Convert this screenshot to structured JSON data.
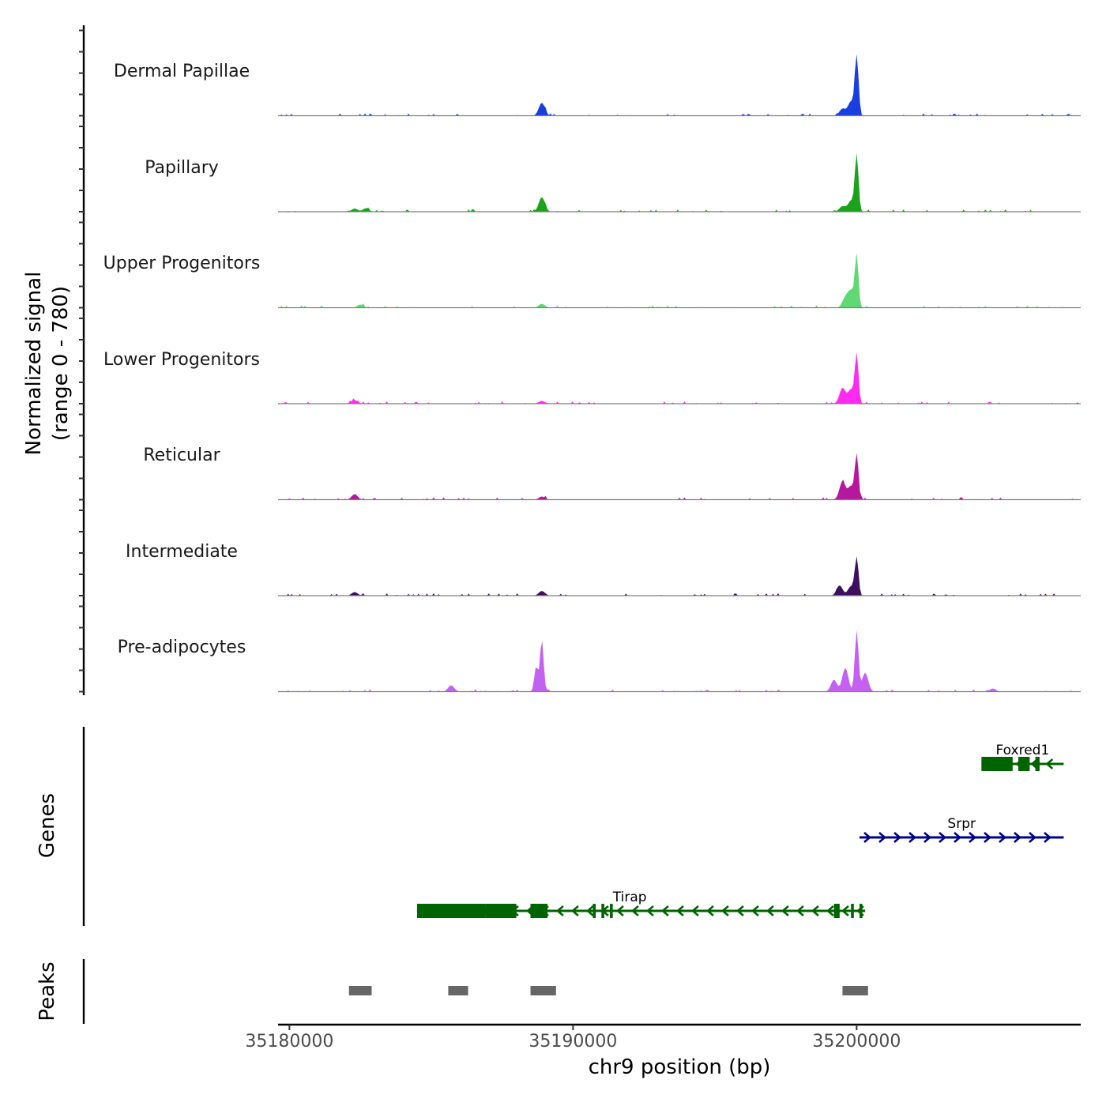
{
  "chart_data": {
    "type": "area",
    "title": "",
    "chromosome": "chr9",
    "xlabel": "chr9 position (bp)",
    "xlim": [
      35179600,
      35207900
    ],
    "x_ticks": [
      35180000,
      35190000,
      35200000
    ],
    "x_tick_labels": [
      "35180000",
      "35190000",
      "35200000"
    ],
    "signal_ylabel_line1": "Normalized signal",
    "signal_ylabel_line2": "(range 0 - 780)",
    "ylim": [
      0,
      780
    ],
    "tracks": [
      {
        "name": "Dermal Papillae",
        "color": "#1a3fe0",
        "peaks": [
          {
            "x": 35188900,
            "y": 165
          },
          {
            "x": 35200000,
            "y": 780
          },
          {
            "x": 35199800,
            "y": 180
          },
          {
            "x": 35199500,
            "y": 90
          }
        ]
      },
      {
        "name": "Papillary",
        "color": "#1aa31a",
        "peaks": [
          {
            "x": 35182300,
            "y": 40
          },
          {
            "x": 35182700,
            "y": 45
          },
          {
            "x": 35188900,
            "y": 185
          },
          {
            "x": 35200000,
            "y": 720
          },
          {
            "x": 35199800,
            "y": 140
          },
          {
            "x": 35199500,
            "y": 70
          }
        ]
      },
      {
        "name": "Upper Progenitors",
        "color": "#5ed974",
        "peaks": [
          {
            "x": 35182500,
            "y": 40
          },
          {
            "x": 35188900,
            "y": 50
          },
          {
            "x": 35200000,
            "y": 660
          },
          {
            "x": 35199800,
            "y": 200
          },
          {
            "x": 35199600,
            "y": 120
          }
        ]
      },
      {
        "name": "Lower Progenitors",
        "color": "#ff2bf0",
        "peaks": [
          {
            "x": 35182300,
            "y": 45
          },
          {
            "x": 35188900,
            "y": 35
          },
          {
            "x": 35200000,
            "y": 620
          },
          {
            "x": 35199500,
            "y": 200
          },
          {
            "x": 35199800,
            "y": 180
          }
        ]
      },
      {
        "name": "Reticular",
        "color": "#b5179e",
        "peaks": [
          {
            "x": 35182300,
            "y": 70
          },
          {
            "x": 35188900,
            "y": 40
          },
          {
            "x": 35200000,
            "y": 560
          },
          {
            "x": 35199500,
            "y": 230
          },
          {
            "x": 35199800,
            "y": 170
          }
        ]
      },
      {
        "name": "Intermediate",
        "color": "#3d0f5e",
        "peaks": [
          {
            "x": 35182300,
            "y": 45
          },
          {
            "x": 35188900,
            "y": 60
          },
          {
            "x": 35200000,
            "y": 480
          },
          {
            "x": 35199400,
            "y": 130
          },
          {
            "x": 35199800,
            "y": 120
          }
        ]
      },
      {
        "name": "Pre-adipocytes",
        "color": "#c461f2",
        "peaks": [
          {
            "x": 35185700,
            "y": 80
          },
          {
            "x": 35188900,
            "y": 660
          },
          {
            "x": 35188700,
            "y": 320
          },
          {
            "x": 35200000,
            "y": 780
          },
          {
            "x": 35199600,
            "y": 300
          },
          {
            "x": 35199200,
            "y": 150
          },
          {
            "x": 35200300,
            "y": 240
          },
          {
            "x": 35204800,
            "y": 40
          }
        ]
      }
    ],
    "genes_label": "Genes",
    "genes": [
      {
        "name": "Foxred1",
        "strand": "-",
        "color": "#006400",
        "start": 35204400,
        "end": 35207300,
        "exons": [
          [
            35204400,
            35205500
          ],
          [
            35205700,
            35206100
          ],
          [
            35206300,
            35206450
          ]
        ]
      },
      {
        "name": "Srpr",
        "strand": "+",
        "color": "#00008b",
        "start": 35200100,
        "end": 35207300,
        "exons": []
      },
      {
        "name": "Tirap",
        "strand": "-",
        "color": "#006400",
        "start": 35184500,
        "end": 35200300,
        "exons": [
          [
            35184500,
            35186900
          ],
          [
            35186900,
            35188000
          ],
          [
            35188500,
            35189100
          ],
          [
            35190700,
            35190800
          ],
          [
            35191000,
            35191100
          ],
          [
            35191300,
            35191400
          ],
          [
            35199200,
            35199400
          ],
          [
            35199800,
            35199900
          ],
          [
            35200100,
            35200200
          ]
        ]
      }
    ],
    "peaks_label": "Peaks",
    "peak_regions": [
      [
        35182100,
        35182900
      ],
      [
        35185600,
        35186300
      ],
      [
        35188500,
        35189400
      ],
      [
        35199500,
        35200400
      ]
    ]
  }
}
